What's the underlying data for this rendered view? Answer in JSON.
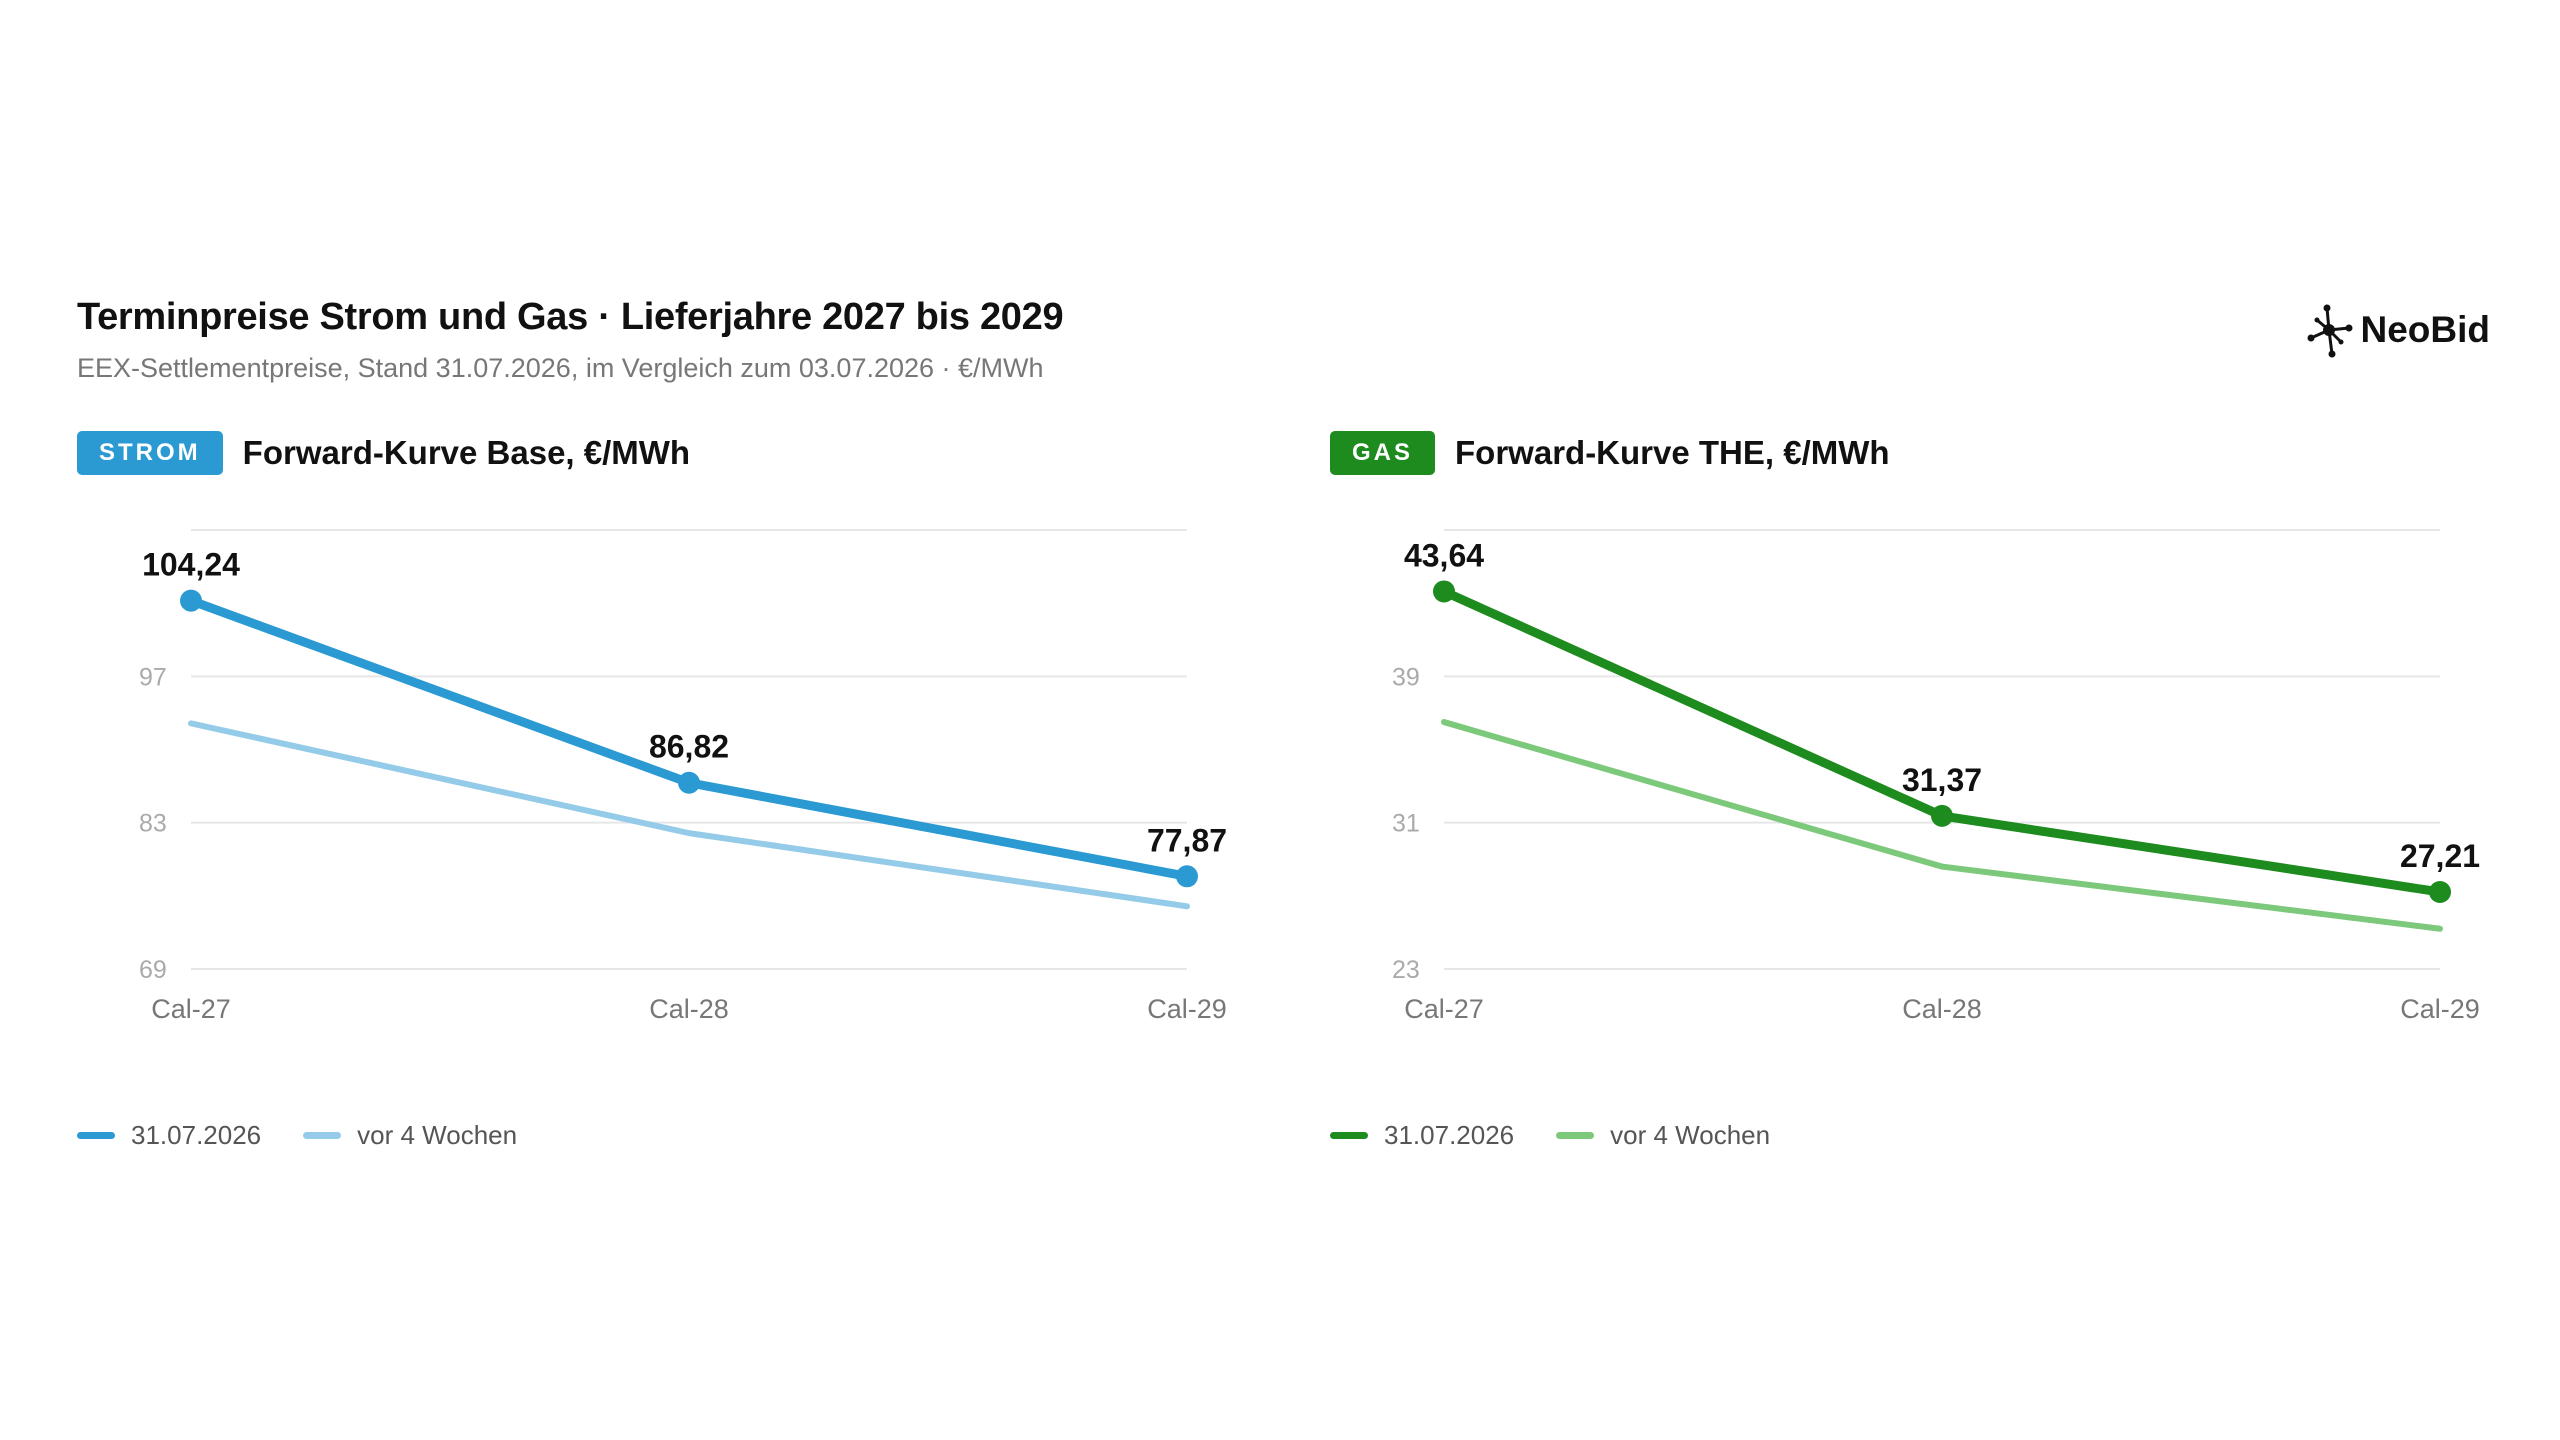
{
  "header": {
    "title": "Terminpreise Strom und Gas · Lieferjahre 2027 bis 2029",
    "subtitle": "EEX-Settlementpreise, Stand 31.07.2026, im Vergleich zum 03.07.2026 · €/MWh"
  },
  "logo": {
    "text": "NeoBid",
    "icon": "network-icon"
  },
  "chart_data": [
    {
      "type": "line",
      "tag": "STROM",
      "tag_color": "#2b9ad3",
      "title": "Forward-Kurve Base, €/MWh",
      "categories": [
        "Cal-27",
        "Cal-28",
        "Cal-29"
      ],
      "yticks": [
        69,
        83,
        97
      ],
      "ylim": [
        69,
        111
      ],
      "grid": true,
      "series": [
        {
          "name": "31.07.2026",
          "values": [
            104.24,
            86.82,
            77.87
          ],
          "color": "#2b9ad3",
          "labels": [
            "104,24",
            "86,82",
            "77,87"
          ]
        },
        {
          "name": "vor 4 Wochen",
          "values": [
            92.5,
            82.0,
            75.0
          ],
          "color": "#94cbe8"
        }
      ]
    },
    {
      "type": "line",
      "tag": "GAS",
      "tag_color": "#1e8b1e",
      "title": "Forward-Kurve THE, €/MWh",
      "categories": [
        "Cal-27",
        "Cal-28",
        "Cal-29"
      ],
      "yticks": [
        23,
        31,
        39
      ],
      "ylim": [
        23,
        47
      ],
      "grid": true,
      "series": [
        {
          "name": "31.07.2026",
          "values": [
            43.64,
            31.37,
            27.21
          ],
          "color": "#1e8b1e",
          "labels": [
            "43,64",
            "31,37",
            "27,21"
          ]
        },
        {
          "name": "vor 4 Wochen",
          "values": [
            36.5,
            28.6,
            25.2
          ],
          "color": "#7dc97b"
        }
      ]
    }
  ]
}
